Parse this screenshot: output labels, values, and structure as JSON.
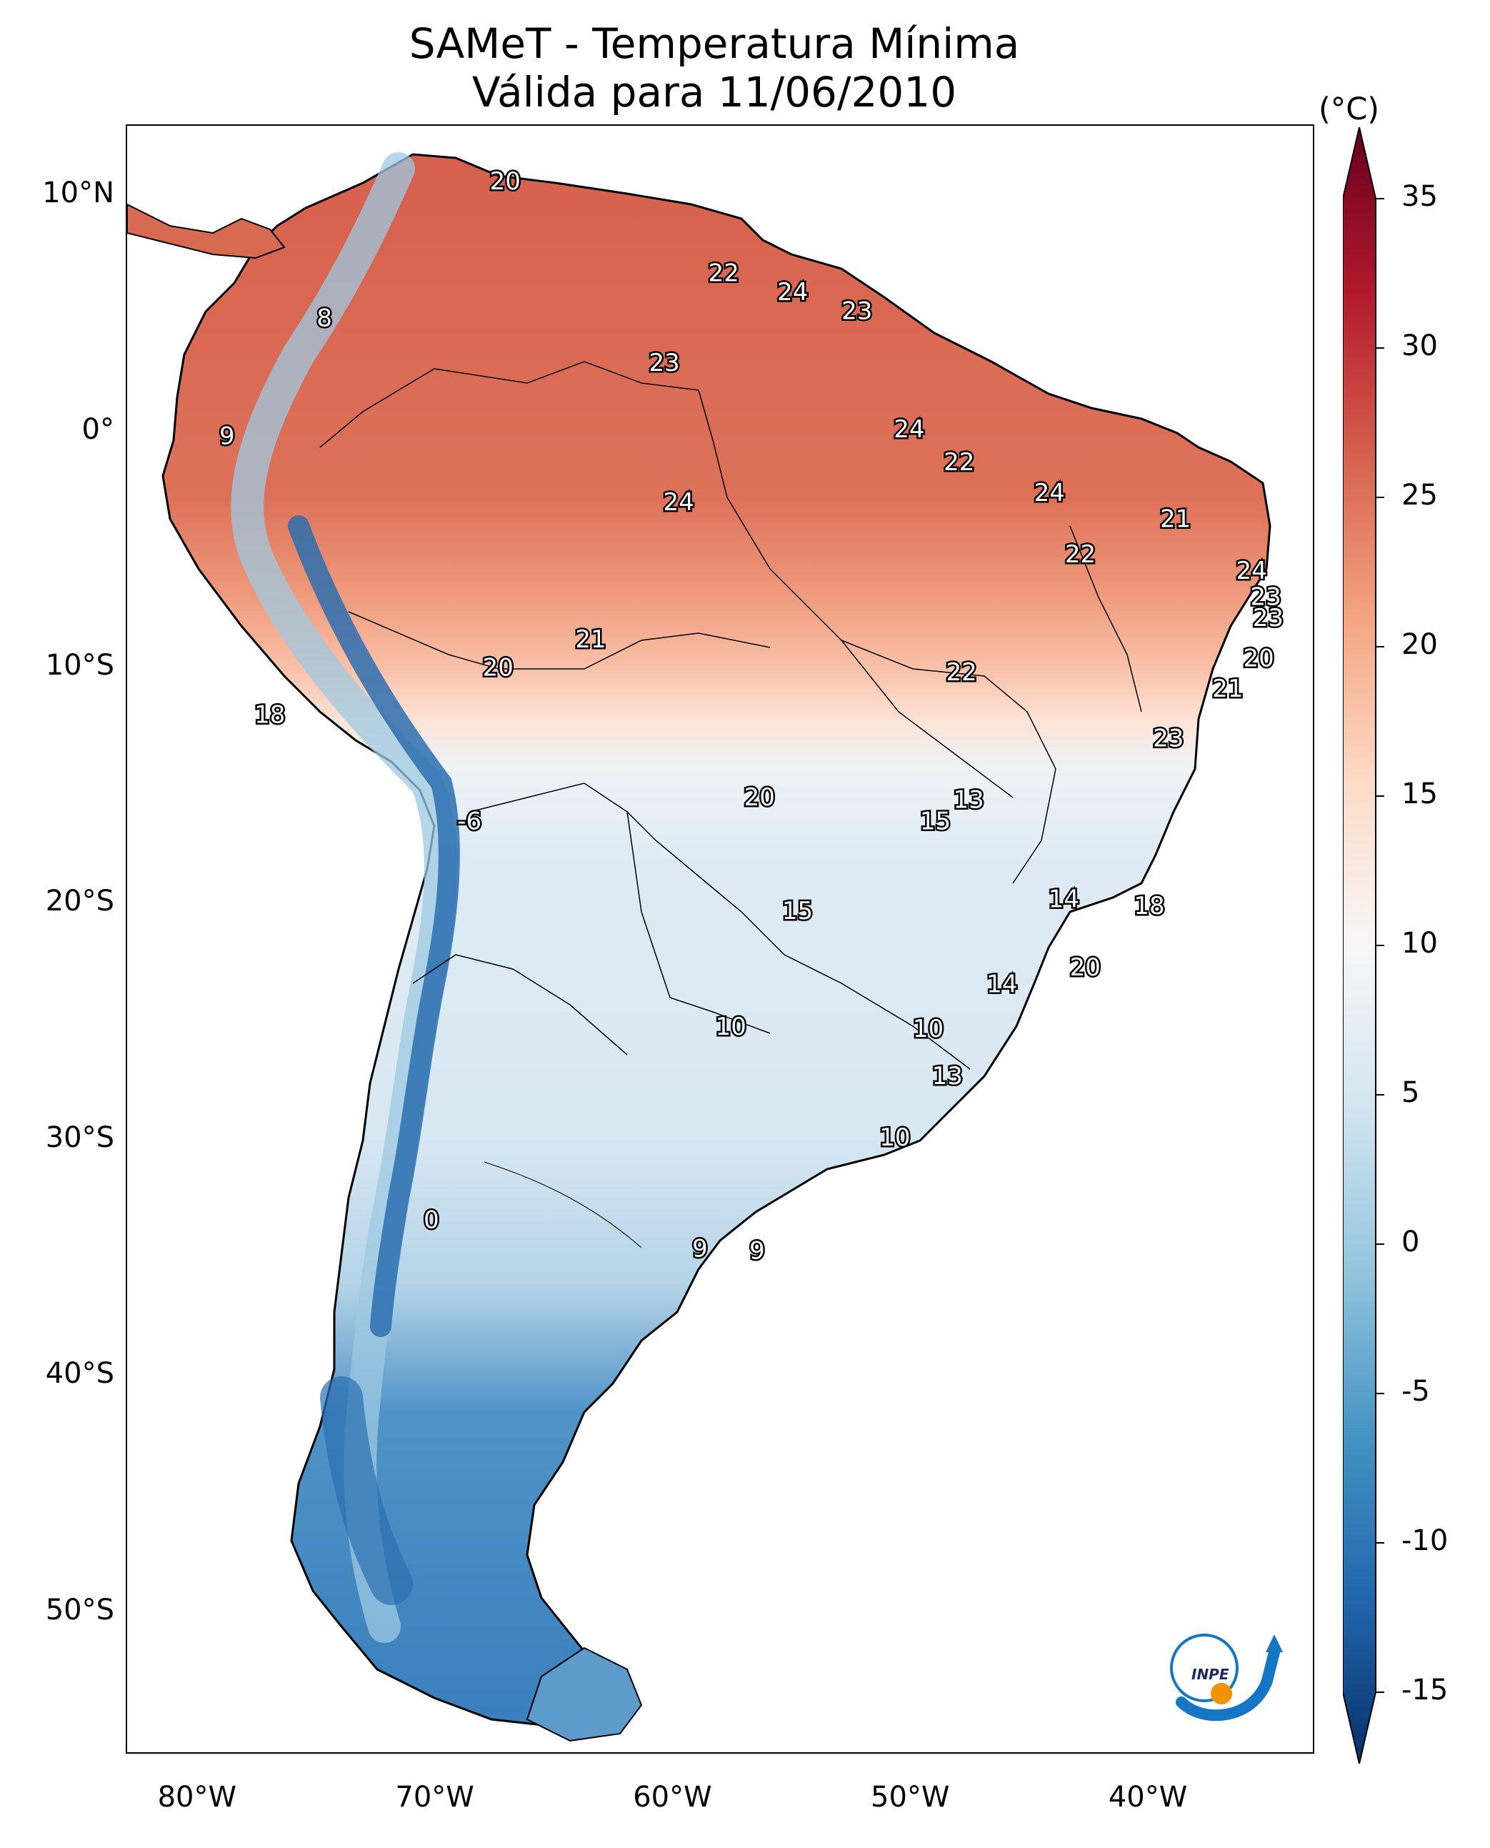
{
  "title": {
    "line1": "SAMeT - Temperatura Mínima",
    "line2": "Válida para 11/06/2010"
  },
  "colorbar": {
    "unit": "(°C)",
    "ticks": [
      "35",
      "30",
      "25",
      "20",
      "15",
      "10",
      "5",
      "0",
      "-5",
      "-10",
      "-15"
    ],
    "tick_values": [
      35,
      30,
      25,
      20,
      15,
      10,
      5,
      0,
      -5,
      -10,
      -15
    ],
    "range": [
      -15,
      35
    ],
    "colors": [
      "#08306b",
      "#2166ac",
      "#4393c3",
      "#92c5de",
      "#d1e5f0",
      "#f7f7f7",
      "#fddbc7",
      "#f4a582",
      "#d6604d",
      "#b2182b",
      "#67001f"
    ]
  },
  "axes": {
    "lat_labels": [
      "10°N",
      "0°",
      "10°S",
      "20°S",
      "30°S",
      "40°S",
      "50°S"
    ],
    "lat_values": [
      10,
      0,
      -10,
      -20,
      -30,
      -40,
      -50
    ],
    "lon_labels": [
      "80°W",
      "70°W",
      "60°W",
      "50°W",
      "40°W"
    ],
    "lon_values": [
      -80,
      -70,
      -60,
      -50,
      -40
    ],
    "lon_range": [
      -83,
      -33
    ],
    "lat_range": [
      13,
      -56
    ]
  },
  "map_values": [
    {
      "text": "20",
      "lon": -67.1,
      "lat": 10.6
    },
    {
      "text": "22",
      "lon": -57.9,
      "lat": 6.7
    },
    {
      "text": "24",
      "lon": -55.0,
      "lat": 5.9
    },
    {
      "text": "23",
      "lon": -52.3,
      "lat": 5.1
    },
    {
      "text": "8",
      "lon": -74.7,
      "lat": 4.8
    },
    {
      "text": "23",
      "lon": -60.4,
      "lat": 2.9
    },
    {
      "text": "24",
      "lon": -50.1,
      "lat": 0.1
    },
    {
      "text": "9",
      "lon": -78.8,
      "lat": -0.2
    },
    {
      "text": "22",
      "lon": -48.0,
      "lat": -1.3
    },
    {
      "text": "24",
      "lon": -59.8,
      "lat": -3.0
    },
    {
      "text": "24",
      "lon": -44.2,
      "lat": -2.6
    },
    {
      "text": "21",
      "lon": -38.9,
      "lat": -3.7
    },
    {
      "text": "22",
      "lon": -42.9,
      "lat": -5.2
    },
    {
      "text": "24",
      "lon": -35.7,
      "lat": -5.9
    },
    {
      "text": "23",
      "lon": -35.1,
      "lat": -7.0
    },
    {
      "text": "23",
      "lon": -35.0,
      "lat": -7.9
    },
    {
      "text": "21",
      "lon": -63.5,
      "lat": -8.8
    },
    {
      "text": "20",
      "lon": -67.4,
      "lat": -10.0
    },
    {
      "text": "22",
      "lon": -47.9,
      "lat": -10.2
    },
    {
      "text": "20",
      "lon": -35.4,
      "lat": -9.6
    },
    {
      "text": "21",
      "lon": -36.7,
      "lat": -10.9
    },
    {
      "text": "18",
      "lon": -77.0,
      "lat": -12.0
    },
    {
      "text": "23",
      "lon": -39.2,
      "lat": -13.0
    },
    {
      "text": "13",
      "lon": -47.6,
      "lat": -15.6
    },
    {
      "text": "20",
      "lon": -56.4,
      "lat": -15.5
    },
    {
      "text": "15",
      "lon": -49.0,
      "lat": -16.5
    },
    {
      "text": "-6",
      "lon": -68.6,
      "lat": -16.5
    },
    {
      "text": "14",
      "lon": -43.6,
      "lat": -19.8
    },
    {
      "text": "18",
      "lon": -40.0,
      "lat": -20.1
    },
    {
      "text": "15",
      "lon": -54.8,
      "lat": -20.3
    },
    {
      "text": "20",
      "lon": -42.7,
      "lat": -22.7
    },
    {
      "text": "14",
      "lon": -46.2,
      "lat": -23.4
    },
    {
      "text": "10",
      "lon": -57.6,
      "lat": -25.2
    },
    {
      "text": "10",
      "lon": -49.3,
      "lat": -25.3
    },
    {
      "text": "13",
      "lon": -48.5,
      "lat": -27.3
    },
    {
      "text": "10",
      "lon": -50.7,
      "lat": -29.9
    },
    {
      "text": "0",
      "lon": -70.2,
      "lat": -33.4
    },
    {
      "text": "9",
      "lon": -58.9,
      "lat": -34.6
    },
    {
      "text": "9",
      "lon": -56.5,
      "lat": -34.7
    }
  ],
  "logo": {
    "text": "INPE"
  }
}
